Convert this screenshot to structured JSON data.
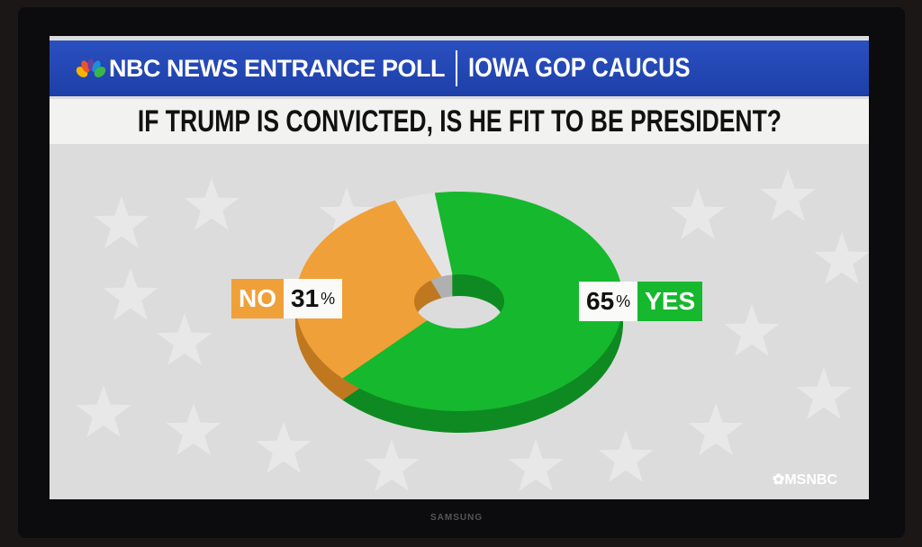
{
  "header": {
    "brand": "NBC NEWS ENTRANCE POLL",
    "event": "IOWA GOP CAUCUS"
  },
  "chart_data": {
    "type": "pie",
    "title": "IF TRUMP IS CONVICTED, IS HE FIT TO BE PRESIDENT?",
    "slices": [
      {
        "label": "YES",
        "value": 65,
        "display": "65",
        "color": "#16b82e",
        "dark": "#0f8a22"
      },
      {
        "label": "NO",
        "value": 31,
        "display": "31",
        "color": "#f0a038",
        "dark": "#c07820"
      },
      {
        "label": "",
        "value": 4,
        "color": "#e4e4e4",
        "dark": "#b0b0b0"
      }
    ],
    "percent_sign": "%",
    "donut": true
  },
  "footer": {
    "network": "MSNBC"
  },
  "tv_brand": "SAMSUNG"
}
